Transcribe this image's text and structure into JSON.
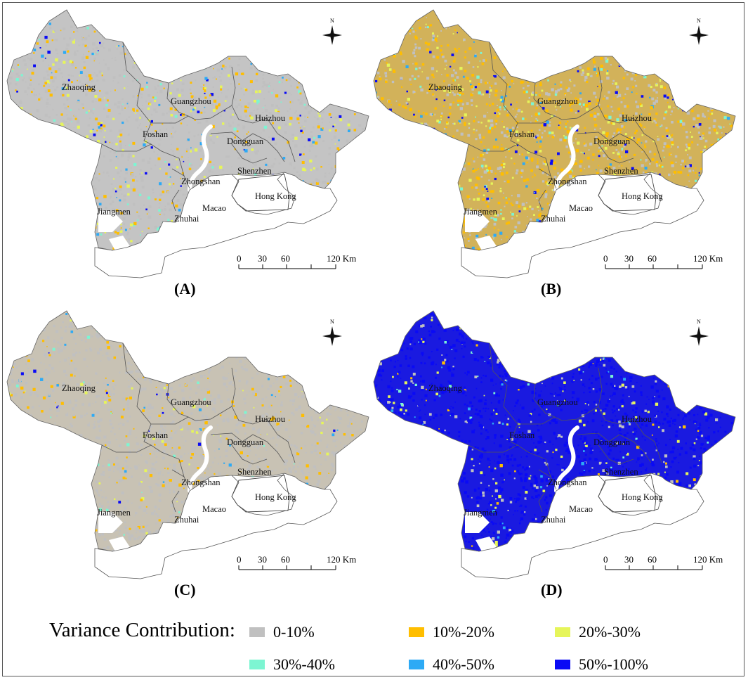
{
  "cities": [
    "Zhaoqing",
    "Guangzhou",
    "Huizhou",
    "Foshan",
    "Dongguan",
    "Shenzhen",
    "Zhongshan",
    "Hong Kong",
    "Jiangmen",
    "Macao",
    "Zhuhai"
  ],
  "scale_bar": {
    "ticks": [
      "0",
      "30",
      "60",
      "120 Km"
    ]
  },
  "north_label": "N",
  "panels": [
    {
      "id": "A",
      "label": "(A)",
      "base_color": "#c4c4c4",
      "mix": {
        "gray": 0.62,
        "orange": 0.16,
        "yellow": 0.1,
        "teal": 0.05,
        "lightblue": 0.04,
        "blue": 0.03
      }
    },
    {
      "id": "B",
      "label": "(B)",
      "base_color": "#d2b25a",
      "mix": {
        "gray": 0.38,
        "orange": 0.34,
        "yellow": 0.12,
        "teal": 0.06,
        "lightblue": 0.05,
        "blue": 0.05
      }
    },
    {
      "id": "C",
      "label": "(C)",
      "base_color": "#c8c2b4",
      "mix": {
        "gray": 0.8,
        "orange": 0.12,
        "yellow": 0.03,
        "teal": 0.02,
        "lightblue": 0.02,
        "blue": 0.01
      }
    },
    {
      "id": "D",
      "label": "(D)",
      "base_color": "#1a1ae0",
      "mix": {
        "gray": 0.12,
        "orange": 0.03,
        "yellow": 0.06,
        "teal": 0.02,
        "lightblue": 0.02,
        "blue": 0.75
      }
    }
  ],
  "legend": {
    "title": "Variance Contribution:",
    "items": [
      {
        "label": "0-10%",
        "color": "#c0c0c0"
      },
      {
        "label": "10%-20%",
        "color": "#ffbe00"
      },
      {
        "label": "20%-30%",
        "color": "#e6f55a"
      },
      {
        "label": "30%-40%",
        "color": "#7df5d2"
      },
      {
        "label": "40%-50%",
        "color": "#2daaf5"
      },
      {
        "label": "50%-100%",
        "color": "#0a0af5"
      }
    ]
  }
}
